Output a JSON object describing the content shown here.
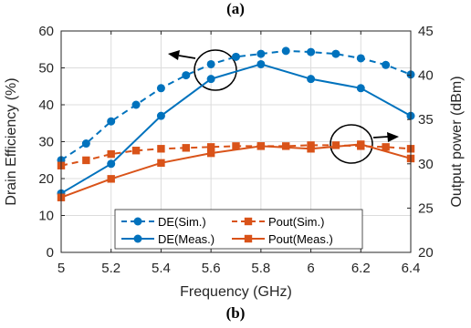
{
  "captions": {
    "top": "(a)",
    "bottom": "(b)"
  },
  "colors": {
    "blue": "#0072BD",
    "orange": "#D95319",
    "grid": "#dcdcdc",
    "axis": "#262626"
  },
  "chart_data": {
    "type": "line",
    "xlabel": "Frequency (GHz)",
    "ylabel": "Drain Efficiency (%)",
    "y2label": "Output power (dBm)",
    "xlim": [
      5,
      6.4
    ],
    "ylim": [
      0,
      60
    ],
    "y2lim": [
      20,
      45
    ],
    "xticks": [
      "5",
      "5.2",
      "5.4",
      "5.6",
      "5.8",
      "6",
      "6.2",
      "6.4"
    ],
    "yticks": [
      "0",
      "10",
      "20",
      "30",
      "40",
      "50",
      "60"
    ],
    "y2ticks": [
      "20",
      "25",
      "30",
      "35",
      "40",
      "45"
    ],
    "grid": true,
    "legend_position": "bottom-center",
    "series": [
      {
        "name": "DE(Sim.)",
        "axis": "left",
        "style": "dashed",
        "marker": "circle",
        "color": "blue",
        "x": [
          5,
          5.1,
          5.2,
          5.3,
          5.4,
          5.5,
          5.6,
          5.7,
          5.8,
          5.9,
          6.0,
          6.1,
          6.2,
          6.3,
          6.4
        ],
        "y": [
          25,
          29.5,
          35.5,
          40,
          44.5,
          48,
          51,
          53,
          53.8,
          54.6,
          54.3,
          53.8,
          52.6,
          50.8,
          48.2
        ]
      },
      {
        "name": "DE(Meas.)",
        "axis": "left",
        "style": "solid",
        "marker": "circle",
        "color": "blue",
        "x": [
          5,
          5.2,
          5.4,
          5.6,
          5.8,
          6.0,
          6.2,
          6.4
        ],
        "y": [
          16,
          24,
          37,
          47,
          51,
          47,
          44.5,
          37
        ]
      },
      {
        "name": "Pout(Sim.)",
        "axis": "right",
        "style": "dashed",
        "marker": "square",
        "color": "orange",
        "x": [
          5,
          5.1,
          5.2,
          5.3,
          5.4,
          5.5,
          5.6,
          5.7,
          5.8,
          5.9,
          6.0,
          6.1,
          6.2,
          6.3,
          6.4
        ],
        "y": [
          29.8,
          30.4,
          31.1,
          31.5,
          31.7,
          31.8,
          31.9,
          32.0,
          32.0,
          32.0,
          32.1,
          32.1,
          32.0,
          31.9,
          31.7
        ]
      },
      {
        "name": "Pout(Meas.)",
        "axis": "right",
        "style": "solid",
        "marker": "square",
        "color": "orange",
        "x": [
          5,
          5.2,
          5.4,
          5.6,
          5.8,
          6.0,
          6.2,
          6.4
        ],
        "y": [
          26.2,
          28.3,
          30.1,
          31.2,
          32.0,
          31.7,
          32.2,
          30.6
        ]
      }
    ]
  }
}
